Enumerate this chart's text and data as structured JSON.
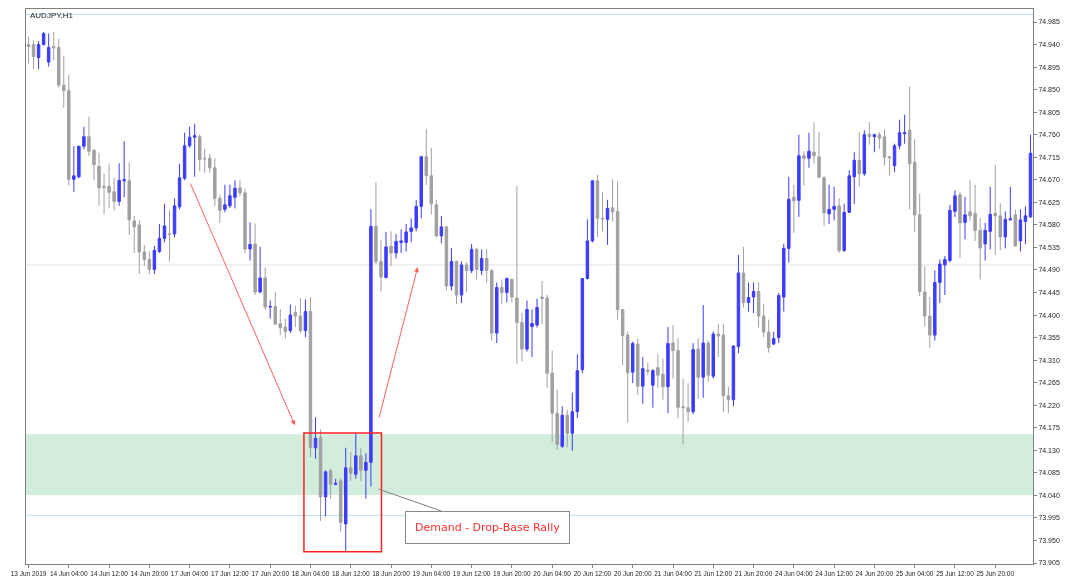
{
  "chart_data": {
    "type": "candlestick",
    "title": "AUDJPY,H1",
    "categories": [
      "13 Jun 2019",
      null,
      null,
      null,
      null,
      null,
      null,
      null,
      "14 Jun 04:00",
      null,
      null,
      null,
      null,
      null,
      null,
      null,
      "14 Jun 12:00",
      null,
      null,
      null,
      null,
      null,
      null,
      null,
      "14 Jun 20:00",
      null,
      null,
      null,
      null,
      null,
      null,
      null,
      "17 Jun 04:00",
      null,
      null,
      null,
      null,
      null,
      null,
      null,
      "17 Jun 12:00",
      null,
      null,
      null,
      null,
      null,
      null,
      null,
      "17 Jun 20:00",
      null,
      null,
      null,
      null,
      null,
      null,
      null,
      "18 Jun 04:00",
      null,
      null,
      null,
      null,
      null,
      null,
      null,
      "18 Jun 12:00",
      null,
      null,
      null,
      null,
      null,
      null,
      null,
      "18 Jun 20:00",
      null,
      null,
      null,
      null,
      null,
      null,
      null,
      "19 Jun 04:00",
      null,
      null,
      null,
      null,
      null,
      null,
      null,
      "19 Jun 12:00",
      null,
      null,
      null,
      null,
      null,
      null,
      null,
      "19 Jun 20:00",
      null,
      null,
      null,
      null,
      null,
      null,
      null,
      "20 Jun 04:00",
      null,
      null,
      null,
      null,
      null,
      null,
      null,
      "20 Jun 12:00",
      null,
      null,
      null,
      null,
      null,
      null,
      null,
      "20 Jun 20:00",
      null,
      null,
      null,
      null,
      null,
      null,
      null,
      "21 Jun 04:00",
      null,
      null,
      null,
      null,
      null,
      null,
      null,
      "21 Jun 12:00",
      null,
      null,
      null,
      null,
      null,
      null,
      null,
      "21 Jun 20:00",
      null,
      null,
      null,
      null,
      null,
      null,
      null,
      "24 Jun 04:00",
      null,
      null,
      null,
      null,
      null,
      null,
      null,
      "24 Jun 12:00",
      null,
      null,
      null,
      null,
      null,
      null,
      null,
      "24 Jun 20:00",
      null,
      null,
      null,
      null,
      null,
      null,
      null,
      "25 Jun 04:00",
      null,
      null,
      null,
      null,
      null,
      null,
      null,
      "25 Jun 12:00",
      null,
      null,
      null,
      null,
      null,
      null,
      null,
      "25 Jun 20:00",
      null,
      null,
      null,
      null,
      null,
      null,
      null
    ],
    "ohlc": [
      [
        74.94,
        74.956,
        74.902,
        74.936
      ],
      [
        74.94,
        74.949,
        74.891,
        74.916
      ],
      [
        74.914,
        74.947,
        74.891,
        74.94
      ],
      [
        74.94,
        74.965,
        74.938,
        74.962
      ],
      [
        74.905,
        74.962,
        74.896,
        74.934
      ],
      [
        74.936,
        74.965,
        74.909,
        74.933
      ],
      [
        74.934,
        74.952,
        74.854,
        74.859
      ],
      [
        74.859,
        74.918,
        74.814,
        74.848
      ],
      [
        74.848,
        74.88,
        74.658,
        74.671
      ],
      [
        74.671,
        74.737,
        74.646,
        74.678
      ],
      [
        74.676,
        74.738,
        74.673,
        74.737
      ],
      [
        74.737,
        74.776,
        74.731,
        74.756
      ],
      [
        74.756,
        74.796,
        74.718,
        74.727
      ],
      [
        74.729,
        74.731,
        74.669,
        74.7
      ],
      [
        74.697,
        74.724,
        74.618,
        74.654
      ],
      [
        74.657,
        74.682,
        74.601,
        74.655
      ],
      [
        74.657,
        74.702,
        74.614,
        74.645
      ],
      [
        74.646,
        74.674,
        74.609,
        74.627
      ],
      [
        74.627,
        74.703,
        74.618,
        74.669
      ],
      [
        74.668,
        74.747,
        74.635,
        74.67
      ],
      [
        74.668,
        74.705,
        74.56,
        74.59
      ],
      [
        74.588,
        74.598,
        74.524,
        74.576
      ],
      [
        74.58,
        74.589,
        74.482,
        74.526
      ],
      [
        74.526,
        74.54,
        74.498,
        74.511
      ],
      [
        74.511,
        74.527,
        74.482,
        74.491
      ],
      [
        74.491,
        74.538,
        74.482,
        74.529
      ],
      [
        74.527,
        74.582,
        74.524,
        74.553
      ],
      [
        74.553,
        74.622,
        74.545,
        74.578
      ],
      [
        74.562,
        74.609,
        74.507,
        74.561
      ],
      [
        74.562,
        74.633,
        74.555,
        74.618
      ],
      [
        74.616,
        74.702,
        74.611,
        74.674
      ],
      [
        74.673,
        74.764,
        74.669,
        74.738
      ],
      [
        74.738,
        74.776,
        74.734,
        74.755
      ],
      [
        74.755,
        74.782,
        74.676,
        74.758
      ],
      [
        74.756,
        74.761,
        74.687,
        74.71
      ],
      [
        74.713,
        74.732,
        74.684,
        74.712
      ],
      [
        74.713,
        74.721,
        74.684,
        74.694
      ],
      [
        74.694,
        74.713,
        74.618,
        74.633
      ],
      [
        74.633,
        74.64,
        74.584,
        74.609
      ],
      [
        74.611,
        74.66,
        74.605,
        74.62
      ],
      [
        74.618,
        74.66,
        74.614,
        74.638
      ],
      [
        74.635,
        74.669,
        74.613,
        74.653
      ],
      [
        74.654,
        74.669,
        74.638,
        74.644
      ],
      [
        74.644,
        74.652,
        74.524,
        74.532
      ],
      [
        74.532,
        74.585,
        74.509,
        74.541
      ],
      [
        74.542,
        74.583,
        74.44,
        74.446
      ],
      [
        74.446,
        74.536,
        74.444,
        74.474
      ],
      [
        74.474,
        74.495,
        74.411,
        74.416
      ],
      [
        74.416,
        74.429,
        74.393,
        74.417
      ],
      [
        74.417,
        74.446,
        74.38,
        74.382
      ],
      [
        74.383,
        74.412,
        74.36,
        74.375
      ],
      [
        74.376,
        74.393,
        74.353,
        74.367
      ],
      [
        74.369,
        74.421,
        74.364,
        74.4
      ],
      [
        74.405,
        74.418,
        74.376,
        74.398
      ],
      [
        74.398,
        74.434,
        74.364,
        74.369
      ],
      [
        74.369,
        74.431,
        74.356,
        74.407
      ],
      [
        74.407,
        74.436,
        74.116,
        74.136
      ],
      [
        74.135,
        74.196,
        74.113,
        74.154
      ],
      [
        74.155,
        74.172,
        73.989,
        74.037
      ],
      [
        74.037,
        74.09,
        73.998,
        74.087
      ],
      [
        74.09,
        74.092,
        74.033,
        74.062
      ],
      [
        74.062,
        74.073,
        74.06,
        74.064
      ],
      [
        74.069,
        74.074,
        73.967,
        73.986
      ],
      [
        73.983,
        74.135,
        73.929,
        74.095
      ],
      [
        74.095,
        74.126,
        74.069,
        74.084
      ],
      [
        74.082,
        74.164,
        74.073,
        74.119
      ],
      [
        74.119,
        74.135,
        74.069,
        74.09
      ],
      [
        74.09,
        74.124,
        74.033,
        74.106
      ],
      [
        74.106,
        74.611,
        74.058,
        74.577
      ],
      [
        74.577,
        74.665,
        74.502,
        74.507
      ],
      [
        74.507,
        74.55,
        74.447,
        74.476
      ],
      [
        74.475,
        74.566,
        74.473,
        74.536
      ],
      [
        74.537,
        74.567,
        74.498,
        74.524
      ],
      [
        74.524,
        74.562,
        74.513,
        74.547
      ],
      [
        74.545,
        74.571,
        74.524,
        74.548
      ],
      [
        74.545,
        74.582,
        74.527,
        74.566
      ],
      [
        74.567,
        74.593,
        74.545,
        74.574
      ],
      [
        74.574,
        74.63,
        74.567,
        74.617
      ],
      [
        74.617,
        74.718,
        74.593,
        74.716
      ],
      [
        74.716,
        74.772,
        74.66,
        74.678
      ],
      [
        74.678,
        74.734,
        74.601,
        74.622
      ],
      [
        74.62,
        74.63,
        74.555,
        74.558
      ],
      [
        74.558,
        74.598,
        74.543,
        74.576
      ],
      [
        74.576,
        74.578,
        74.449,
        74.458
      ],
      [
        74.458,
        74.534,
        74.449,
        74.507
      ],
      [
        74.507,
        74.509,
        74.422,
        74.44
      ],
      [
        74.44,
        74.507,
        74.424,
        74.5
      ],
      [
        74.5,
        74.505,
        74.446,
        74.489
      ],
      [
        74.489,
        74.542,
        74.484,
        74.531
      ],
      [
        74.531,
        74.534,
        74.471,
        74.491
      ],
      [
        74.489,
        74.531,
        74.48,
        74.513
      ],
      [
        74.513,
        74.532,
        74.465,
        74.489
      ],
      [
        74.489,
        74.492,
        74.349,
        74.364
      ],
      [
        74.364,
        74.465,
        74.344,
        74.455
      ],
      [
        74.455,
        74.471,
        74.422,
        74.445
      ],
      [
        74.445,
        74.475,
        74.425,
        74.473
      ],
      [
        74.471,
        74.473,
        74.425,
        74.436
      ],
      [
        74.434,
        74.658,
        74.303,
        74.385
      ],
      [
        74.385,
        74.404,
        74.308,
        74.332
      ],
      [
        74.332,
        74.429,
        74.327,
        74.411
      ],
      [
        74.377,
        74.411,
        74.316,
        74.383
      ],
      [
        74.38,
        74.433,
        74.375,
        74.415
      ],
      [
        74.436,
        74.468,
        74.382,
        74.433
      ],
      [
        74.434,
        74.44,
        74.255,
        74.284
      ],
      [
        74.284,
        74.329,
        74.146,
        74.204
      ],
      [
        74.204,
        74.251,
        74.131,
        74.142
      ],
      [
        74.138,
        74.218,
        74.135,
        74.2
      ],
      [
        74.2,
        74.211,
        74.136,
        74.164
      ],
      [
        74.164,
        74.245,
        74.129,
        74.207
      ],
      [
        74.207,
        74.322,
        74.194,
        74.289
      ],
      [
        74.291,
        74.474,
        74.284,
        74.473
      ],
      [
        74.473,
        74.591,
        74.471,
        74.548
      ],
      [
        74.548,
        74.669,
        74.545,
        74.668
      ],
      [
        74.668,
        74.68,
        74.556,
        74.593
      ],
      [
        74.593,
        74.645,
        74.567,
        74.592
      ],
      [
        74.591,
        74.63,
        74.54,
        74.613
      ],
      [
        74.614,
        74.671,
        74.587,
        74.606
      ],
      [
        74.607,
        74.667,
        74.391,
        74.411
      ],
      [
        74.411,
        74.412,
        74.3,
        74.359
      ],
      [
        74.36,
        74.367,
        74.186,
        74.285
      ],
      [
        74.286,
        74.347,
        74.264,
        74.343
      ],
      [
        74.342,
        74.353,
        74.24,
        74.258
      ],
      [
        74.258,
        74.316,
        74.223,
        74.293
      ],
      [
        74.29,
        74.305,
        74.28,
        74.288
      ],
      [
        74.26,
        74.292,
        74.215,
        74.289
      ],
      [
        74.295,
        74.322,
        74.255,
        74.28
      ],
      [
        74.282,
        74.313,
        74.231,
        74.257
      ],
      [
        74.257,
        74.376,
        74.204,
        74.343
      ],
      [
        74.344,
        74.38,
        74.273,
        74.329
      ],
      [
        74.329,
        74.354,
        74.194,
        74.216
      ],
      [
        74.217,
        74.273,
        74.142,
        74.215
      ],
      [
        74.215,
        74.264,
        74.187,
        74.207
      ],
      [
        74.207,
        74.344,
        74.202,
        74.331
      ],
      [
        74.332,
        74.353,
        74.233,
        74.276
      ],
      [
        74.276,
        74.42,
        74.235,
        74.344
      ],
      [
        74.344,
        74.349,
        74.266,
        74.28
      ],
      [
        74.278,
        74.367,
        74.273,
        74.362
      ],
      [
        74.362,
        74.383,
        74.316,
        74.358
      ],
      [
        74.36,
        74.383,
        74.206,
        74.239
      ],
      [
        74.239,
        74.257,
        74.204,
        74.231
      ],
      [
        74.231,
        74.34,
        74.218,
        74.338
      ],
      [
        74.337,
        74.52,
        74.324,
        74.484
      ],
      [
        74.484,
        74.536,
        74.415,
        74.425
      ],
      [
        74.425,
        74.465,
        74.407,
        74.435
      ],
      [
        74.436,
        74.465,
        74.404,
        74.447
      ],
      [
        74.447,
        74.465,
        74.375,
        74.398
      ],
      [
        74.398,
        74.422,
        74.356,
        74.366
      ],
      [
        74.366,
        74.391,
        74.325,
        74.335
      ],
      [
        74.342,
        74.367,
        74.34,
        74.353
      ],
      [
        74.355,
        74.444,
        74.344,
        74.439
      ],
      [
        74.436,
        74.542,
        74.407,
        74.533
      ],
      [
        74.533,
        74.676,
        74.505,
        74.631
      ],
      [
        74.635,
        74.66,
        74.564,
        74.628
      ],
      [
        74.629,
        74.76,
        74.596,
        74.718
      ],
      [
        74.718,
        74.727,
        74.658,
        74.713
      ],
      [
        74.713,
        74.764,
        74.694,
        74.727
      ],
      [
        74.725,
        74.785,
        74.703,
        74.718
      ],
      [
        74.716,
        74.765,
        74.673,
        74.675
      ],
      [
        74.674,
        74.678,
        74.578,
        74.604
      ],
      [
        74.602,
        74.66,
        74.582,
        74.611
      ],
      [
        74.611,
        74.656,
        74.589,
        74.617
      ],
      [
        74.618,
        74.633,
        74.524,
        74.529
      ],
      [
        74.529,
        74.622,
        74.526,
        74.605
      ],
      [
        74.605,
        74.689,
        74.604,
        74.678
      ],
      [
        74.676,
        74.725,
        74.622,
        74.709
      ],
      [
        74.709,
        74.765,
        74.657,
        74.682
      ],
      [
        74.682,
        74.769,
        74.678,
        74.76
      ],
      [
        74.761,
        74.785,
        74.74,
        74.756
      ],
      [
        74.756,
        74.762,
        74.725,
        74.76
      ],
      [
        74.76,
        74.765,
        74.732,
        74.753
      ],
      [
        74.756,
        74.771,
        74.698,
        74.715
      ],
      [
        74.716,
        74.718,
        74.678,
        74.714
      ],
      [
        74.698,
        74.742,
        74.685,
        74.738
      ],
      [
        74.738,
        74.79,
        74.731,
        74.764
      ],
      [
        74.762,
        74.8,
        74.742,
        74.764
      ],
      [
        74.769,
        74.856,
        74.611,
        74.702
      ],
      [
        74.705,
        74.751,
        74.566,
        74.6
      ],
      [
        74.6,
        74.642,
        74.438,
        74.447
      ],
      [
        74.446,
        74.498,
        74.378,
        74.398
      ],
      [
        74.398,
        74.436,
        74.335,
        74.36
      ],
      [
        74.36,
        74.489,
        74.349,
        74.465
      ],
      [
        74.465,
        74.511,
        74.424,
        74.502
      ],
      [
        74.5,
        74.518,
        74.44,
        74.511
      ],
      [
        74.509,
        74.62,
        74.505,
        74.609
      ],
      [
        74.607,
        74.649,
        74.596,
        74.638
      ],
      [
        74.64,
        74.646,
        74.514,
        74.584
      ],
      [
        74.585,
        74.636,
        74.551,
        74.6
      ],
      [
        74.606,
        74.669,
        74.589,
        74.598
      ],
      [
        74.603,
        74.66,
        74.548,
        74.569
      ],
      [
        74.569,
        74.594,
        74.471,
        74.534
      ],
      [
        74.542,
        74.584,
        74.509,
        74.569
      ],
      [
        74.567,
        74.656,
        74.531,
        74.601
      ],
      [
        74.603,
        74.7,
        74.52,
        74.598
      ],
      [
        74.598,
        74.623,
        74.529,
        74.556
      ],
      [
        74.556,
        74.607,
        74.533,
        74.591
      ],
      [
        74.59,
        74.656,
        74.589,
        74.592
      ],
      [
        74.6,
        74.611,
        74.537,
        74.538
      ],
      [
        74.548,
        74.611,
        74.527,
        74.59
      ],
      [
        74.587,
        74.617,
        74.542,
        74.598
      ],
      [
        74.596,
        74.76,
        74.594,
        74.723
      ]
    ],
    "colors": [
      "#a0a0a0",
      "#a0a0a0",
      "#3c3cff",
      "#3c3cff",
      "#3c3cff",
      "#a0a0a0",
      "#a0a0a0",
      "#a0a0a0",
      "#a0a0a0",
      "#3c3cff",
      "#3c3cff",
      "#3c3cff",
      "#a0a0a0",
      "#a0a0a0",
      "#a0a0a0",
      "#a0a0a0",
      "#a0a0a0",
      "#a0a0a0",
      "#3c3cff",
      "#3c3cff",
      "#a0a0a0",
      "#a0a0a0",
      "#a0a0a0",
      "#a0a0a0",
      "#a0a0a0",
      "#3c3cff",
      "#3c3cff",
      "#3c3cff",
      "#a0a0a0",
      "#3c3cff",
      "#3c3cff",
      "#3c3cff",
      "#3c3cff",
      "#3c3cff",
      "#a0a0a0",
      "#a0a0a0",
      "#a0a0a0",
      "#a0a0a0",
      "#a0a0a0",
      "#3c3cff",
      "#3c3cff",
      "#3c3cff",
      "#a0a0a0",
      "#a0a0a0",
      "#3c3cff",
      "#a0a0a0",
      "#3c3cff",
      "#a0a0a0",
      "#3c3cff",
      "#a0a0a0",
      "#a0a0a0",
      "#a0a0a0",
      "#3c3cff",
      "#a0a0a0",
      "#a0a0a0",
      "#3c3cff",
      "#a0a0a0",
      "#3c3cff",
      "#a0a0a0",
      "#3c3cff",
      "#a0a0a0",
      "#3c3cff",
      "#a0a0a0",
      "#3c3cff",
      "#a0a0a0",
      "#3c3cff",
      "#a0a0a0",
      "#3c3cff",
      "#3c3cff",
      "#a0a0a0",
      "#a0a0a0",
      "#3c3cff",
      "#a0a0a0",
      "#3c3cff",
      "#3c3cff",
      "#3c3cff",
      "#3c3cff",
      "#3c3cff",
      "#3c3cff",
      "#a0a0a0",
      "#a0a0a0",
      "#a0a0a0",
      "#3c3cff",
      "#a0a0a0",
      "#3c3cff",
      "#a0a0a0",
      "#3c3cff",
      "#a0a0a0",
      "#3c3cff",
      "#a0a0a0",
      "#3c3cff",
      "#a0a0a0",
      "#a0a0a0",
      "#3c3cff",
      "#a0a0a0",
      "#3c3cff",
      "#a0a0a0",
      "#a0a0a0",
      "#a0a0a0",
      "#3c3cff",
      "#3c3cff",
      "#3c3cff",
      "#a0a0a0",
      "#a0a0a0",
      "#a0a0a0",
      "#a0a0a0",
      "#3c3cff",
      "#a0a0a0",
      "#3c3cff",
      "#3c3cff",
      "#3c3cff",
      "#3c3cff",
      "#3c3cff",
      "#a0a0a0",
      "#a0a0a0",
      "#3c3cff",
      "#a0a0a0",
      "#a0a0a0",
      "#a0a0a0",
      "#a0a0a0",
      "#3c3cff",
      "#a0a0a0",
      "#3c3cff",
      "#a0a0a0",
      "#3c3cff",
      "#a0a0a0",
      "#a0a0a0",
      "#3c3cff",
      "#a0a0a0",
      "#a0a0a0",
      "#a0a0a0",
      "#a0a0a0",
      "#3c3cff",
      "#a0a0a0",
      "#3c3cff",
      "#a0a0a0",
      "#3c3cff",
      "#a0a0a0",
      "#a0a0a0",
      "#a0a0a0",
      "#3c3cff",
      "#3c3cff",
      "#a0a0a0",
      "#3c3cff",
      "#3c3cff",
      "#a0a0a0",
      "#a0a0a0",
      "#a0a0a0",
      "#3c3cff",
      "#3c3cff",
      "#3c3cff",
      "#3c3cff",
      "#a0a0a0",
      "#3c3cff",
      "#a0a0a0",
      "#3c3cff",
      "#a0a0a0",
      "#a0a0a0",
      "#a0a0a0",
      "#3c3cff",
      "#3c3cff",
      "#a0a0a0",
      "#3c3cff",
      "#3c3cff",
      "#3c3cff",
      "#a0a0a0",
      "#3c3cff",
      "#a0a0a0",
      "#3c3cff",
      "#a0a0a0",
      "#a0a0a0",
      "#a0a0a0",
      "#3c3cff",
      "#3c3cff",
      "#3c3cff",
      "#a0a0a0",
      "#a0a0a0",
      "#a0a0a0",
      "#a0a0a0",
      "#a0a0a0",
      "#3c3cff",
      "#3c3cff",
      "#3c3cff",
      "#3c3cff",
      "#3c3cff",
      "#a0a0a0",
      "#3c3cff",
      "#a0a0a0",
      "#a0a0a0",
      "#a0a0a0",
      "#3c3cff",
      "#3c3cff",
      "#a0a0a0",
      "#a0a0a0",
      "#3c3cff",
      "#3c3cff",
      "#a0a0a0",
      "#3c3cff",
      "#3c3cff",
      "#3c3cff"
    ],
    "ylim": [
      73.903,
      75.011
    ],
    "yticks": [
      {
        "value": 74.985,
        "label": "74.985"
      },
      {
        "value": 74.94,
        "label": "74.940"
      },
      {
        "value": 74.895,
        "label": "74.895"
      },
      {
        "value": 74.85,
        "label": "74.850"
      },
      {
        "value": 74.805,
        "label": "74.805"
      },
      {
        "value": 74.76,
        "label": "74.760"
      },
      {
        "value": 74.715,
        "label": "74.715"
      },
      {
        "value": 74.67,
        "label": "74.670"
      },
      {
        "value": 74.625,
        "label": "74.625"
      },
      {
        "value": 74.58,
        "label": "74.580"
      },
      {
        "value": 74.535,
        "label": "74.535"
      },
      {
        "value": 74.49,
        "label": "74.490"
      },
      {
        "value": 74.445,
        "label": "74.445"
      },
      {
        "value": 74.4,
        "label": "74.400"
      },
      {
        "value": 74.355,
        "label": "74.355"
      },
      {
        "value": 74.31,
        "label": "74.310"
      },
      {
        "value": 74.265,
        "label": "74.265"
      },
      {
        "value": 74.22,
        "label": "74.220"
      },
      {
        "value": 74.175,
        "label": "74.175"
      },
      {
        "value": 74.13,
        "label": "74.130"
      },
      {
        "value": 74.085,
        "label": "74.085"
      },
      {
        "value": 74.04,
        "label": "74.040"
      },
      {
        "value": 73.995,
        "label": "73.995"
      },
      {
        "value": 73.95,
        "label": "73.950"
      },
      {
        "value": 73.905,
        "label": "73.905"
      }
    ],
    "ref_lines": [
      {
        "axis": "y",
        "value": 75.0,
        "color": "#bfe3ee"
      },
      {
        "axis": "y",
        "value": 74.5,
        "color": "#e4e4e4"
      },
      {
        "axis": "y",
        "value": 74.0,
        "color": "#bfe3ee"
      }
    ],
    "bands": [
      {
        "axis": "y",
        "from": 74.041,
        "to": 74.162,
        "color": "#a6dcb8"
      }
    ],
    "annotations": [
      "Demand - Drop-Base Rally"
    ]
  }
}
